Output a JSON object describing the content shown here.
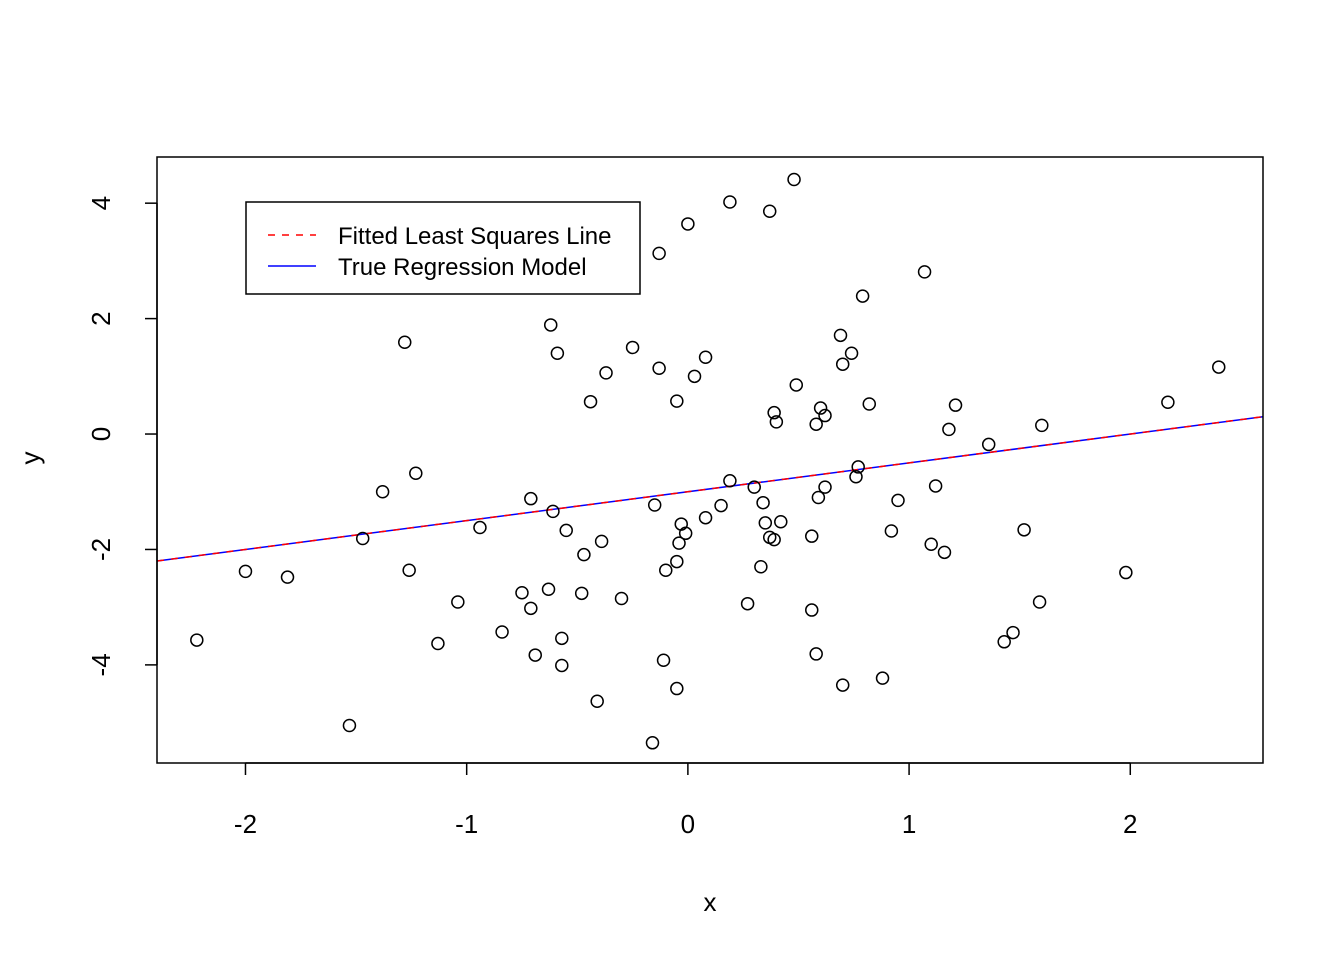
{
  "chart_data": {
    "type": "scatter",
    "title": "",
    "xlabel": "x",
    "ylabel": "y",
    "xlim": [
      -2.4,
      2.6
    ],
    "ylim": [
      -5.7,
      4.8
    ],
    "x_ticks": [
      -2,
      -1,
      0,
      1,
      2
    ],
    "x_tick_labels": [
      "-2",
      "-1",
      "0",
      "1",
      "2"
    ],
    "y_ticks": [
      -4,
      -2,
      0,
      2,
      4
    ],
    "y_tick_labels": [
      "-4",
      "-2",
      "0",
      "2",
      "4"
    ],
    "grid": false,
    "legend_position": "top-left",
    "legend": [
      {
        "label": "Fitted Least Squares Line",
        "color": "#ff0000",
        "style": "dashed"
      },
      {
        "label": "True Regression Model",
        "color": "#0000ff",
        "style": "solid"
      }
    ],
    "lines": [
      {
        "name": "Fitted Least Squares Line",
        "color": "#ff0000",
        "style": "dashed",
        "intercept": -1.0,
        "slope": 0.5
      },
      {
        "name": "True Regression Model",
        "color": "#0000ff",
        "style": "solid",
        "intercept": -1.0,
        "slope": 0.5
      }
    ],
    "points": [
      [
        -2.22,
        -3.57
      ],
      [
        -2.0,
        -2.38
      ],
      [
        -1.81,
        -2.48
      ],
      [
        -1.53,
        -5.05
      ],
      [
        -1.47,
        -1.81
      ],
      [
        -1.38,
        -1.0
      ],
      [
        -1.28,
        1.59
      ],
      [
        -1.26,
        -2.36
      ],
      [
        -1.23,
        -0.68
      ],
      [
        -1.13,
        -3.63
      ],
      [
        -1.04,
        -2.91
      ],
      [
        -0.94,
        -1.62
      ],
      [
        -0.84,
        -3.43
      ],
      [
        -0.75,
        -2.75
      ],
      [
        -0.71,
        -1.12
      ],
      [
        -0.71,
        -3.02
      ],
      [
        -0.69,
        -3.83
      ],
      [
        -0.62,
        1.89
      ],
      [
        -0.63,
        -2.69
      ],
      [
        -0.61,
        -1.34
      ],
      [
        -0.59,
        1.4
      ],
      [
        -0.57,
        -3.54
      ],
      [
        -0.57,
        -4.01
      ],
      [
        -0.55,
        -1.67
      ],
      [
        -0.48,
        -2.76
      ],
      [
        -0.47,
        -2.09
      ],
      [
        -0.44,
        0.56
      ],
      [
        -0.41,
        -4.63
      ],
      [
        -0.39,
        -1.86
      ],
      [
        -0.37,
        1.06
      ],
      [
        -0.3,
        -2.85
      ],
      [
        -0.25,
        1.5
      ],
      [
        -0.16,
        -5.35
      ],
      [
        -0.15,
        -1.23
      ],
      [
        -0.13,
        3.13
      ],
      [
        -0.13,
        1.14
      ],
      [
        -0.11,
        -3.92
      ],
      [
        -0.1,
        -2.36
      ],
      [
        -0.05,
        -2.21
      ],
      [
        -0.05,
        -4.41
      ],
      [
        -0.05,
        0.57
      ],
      [
        -0.04,
        -1.89
      ],
      [
        -0.03,
        -1.56
      ],
      [
        -0.01,
        -1.72
      ],
      [
        0.0,
        3.64
      ],
      [
        0.03,
        1.0
      ],
      [
        0.08,
        1.33
      ],
      [
        0.08,
        -1.45
      ],
      [
        0.15,
        -1.24
      ],
      [
        0.19,
        -0.81
      ],
      [
        0.19,
        4.02
      ],
      [
        0.27,
        -2.94
      ],
      [
        0.3,
        -0.92
      ],
      [
        0.33,
        -2.3
      ],
      [
        0.34,
        -1.19
      ],
      [
        0.35,
        -1.54
      ],
      [
        0.37,
        3.86
      ],
      [
        0.37,
        -1.79
      ],
      [
        0.39,
        0.37
      ],
      [
        0.39,
        -1.83
      ],
      [
        0.4,
        0.21
      ],
      [
        0.42,
        -1.52
      ],
      [
        0.48,
        4.41
      ],
      [
        0.49,
        0.85
      ],
      [
        0.56,
        -1.77
      ],
      [
        0.56,
        -3.05
      ],
      [
        0.58,
        0.17
      ],
      [
        0.58,
        -3.81
      ],
      [
        0.59,
        -1.1
      ],
      [
        0.6,
        0.45
      ],
      [
        0.62,
        0.32
      ],
      [
        0.62,
        -0.92
      ],
      [
        0.69,
        1.71
      ],
      [
        0.7,
        1.21
      ],
      [
        0.7,
        -4.35
      ],
      [
        0.74,
        1.4
      ],
      [
        0.76,
        -0.74
      ],
      [
        0.77,
        -0.57
      ],
      [
        0.79,
        2.39
      ],
      [
        0.82,
        0.52
      ],
      [
        0.88,
        -4.23
      ],
      [
        0.92,
        -1.68
      ],
      [
        0.95,
        -1.15
      ],
      [
        1.07,
        2.81
      ],
      [
        1.1,
        -1.91
      ],
      [
        1.12,
        -0.9
      ],
      [
        1.16,
        -2.05
      ],
      [
        1.18,
        0.08
      ],
      [
        1.21,
        0.5
      ],
      [
        1.36,
        -0.18
      ],
      [
        1.43,
        -3.6
      ],
      [
        1.47,
        -3.44
      ],
      [
        1.52,
        -1.66
      ],
      [
        1.59,
        -2.91
      ],
      [
        1.6,
        0.15
      ],
      [
        1.98,
        -2.4
      ],
      [
        2.17,
        0.55
      ],
      [
        2.4,
        1.16
      ]
    ]
  }
}
